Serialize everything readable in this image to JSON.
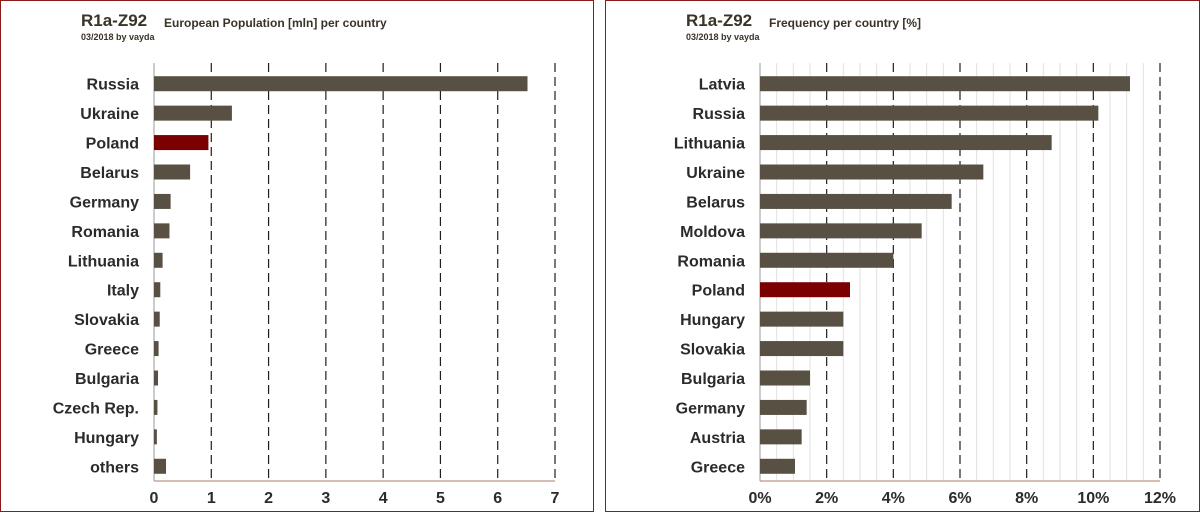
{
  "colors": {
    "bar": "#575043",
    "highlight": "#7b0000",
    "axis_line": "#c9a89a",
    "frame": "#8b1a1a",
    "text": "#2b2b2b"
  },
  "chart_data": [
    {
      "type": "bar",
      "orientation": "horizontal",
      "title": "R1a-Z92",
      "subtitle": "European Population [mln] per country",
      "credit": "03/2018 by vayda",
      "categories": [
        "Russia",
        "Ukraine",
        "Poland",
        "Belarus",
        "Germany",
        "Romania",
        "Lithuania",
        "Italy",
        "Slovakia",
        "Greece",
        "Bulgaria",
        "Czech Rep.",
        "Hungary",
        "others"
      ],
      "values": [
        6.52,
        1.36,
        0.95,
        0.63,
        0.29,
        0.27,
        0.15,
        0.11,
        0.1,
        0.08,
        0.07,
        0.06,
        0.05,
        0.21
      ],
      "highlight": "Poland",
      "xlim": [
        0,
        7
      ],
      "xticks": [
        "0",
        "1",
        "2",
        "3",
        "4",
        "5",
        "6",
        "7"
      ],
      "grid": "dashed major, light minor"
    },
    {
      "type": "bar",
      "orientation": "horizontal",
      "title": "R1a-Z92",
      "subtitle": "Frequency per country [%]",
      "credit": "03/2018 by vayda",
      "categories": [
        "Latvia",
        "Russia",
        "Lithuania",
        "Ukraine",
        "Belarus",
        "Moldova",
        "Romania",
        "Poland",
        "Hungary",
        "Slovakia",
        "Bulgaria",
        "Germany",
        "Austria",
        "Greece"
      ],
      "values": [
        11.1,
        10.15,
        8.75,
        6.7,
        5.75,
        4.85,
        4.0,
        2.7,
        2.5,
        2.5,
        1.5,
        1.4,
        1.25,
        1.05
      ],
      "highlight": "Poland",
      "xlim": [
        0,
        12
      ],
      "xticks": [
        "0%",
        "2%",
        "4%",
        "6%",
        "8%",
        "10%",
        "12%"
      ],
      "grid": "dashed major, light minor"
    }
  ]
}
